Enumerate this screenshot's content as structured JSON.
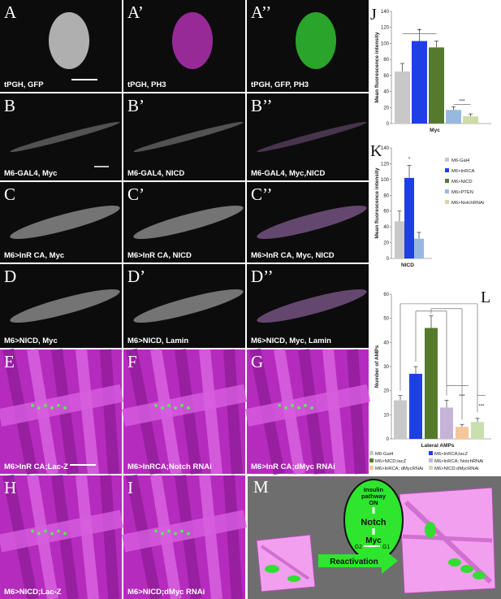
{
  "panels": [
    {
      "letter": "A",
      "caption": "tPGH, GFP"
    },
    {
      "letter": "A’",
      "caption": "tPGH, PH3"
    },
    {
      "letter": "A’’",
      "caption": "tPGH, GFP, PH3"
    },
    {
      "letter": "B",
      "caption": "M6-GAL4, Myc"
    },
    {
      "letter": "B’",
      "caption": "M6-GAL4, NICD"
    },
    {
      "letter": "B’’",
      "caption": "M6-GAL4, Myc,NICD"
    },
    {
      "letter": "C",
      "caption": "M6>InR CA, Myc"
    },
    {
      "letter": "C’",
      "caption": "M6>InR CA, NICD"
    },
    {
      "letter": "C’’",
      "caption": "M6>InR CA, Myc, NICD"
    },
    {
      "letter": "D",
      "caption": "M6>NICD, Myc"
    },
    {
      "letter": "D’",
      "caption": "M6>NICD, Lamin"
    },
    {
      "letter": "D’’",
      "caption": "M6>NICD, Myc, Lamin"
    },
    {
      "letter": "E",
      "caption": "M6>InR CA;Lac-Z"
    },
    {
      "letter": "F",
      "caption": "M6>InRCA;Notch RNAi"
    },
    {
      "letter": "G",
      "caption": "M6>InR CA;dMyc RNAi"
    },
    {
      "letter": "H",
      "caption": "M6>NICD;Lac-Z"
    },
    {
      "letter": "I",
      "caption": "M6>NICD;dMyc RNAi"
    }
  ],
  "chart_data": [
    {
      "type": "bar",
      "label": "J",
      "y_label": "Mean fluorescence intensity",
      "x_label": "Myc",
      "ylim": [
        0,
        140
      ],
      "yticks": [
        0,
        20,
        40,
        60,
        80,
        100,
        120,
        140
      ],
      "annotations": [
        "*",
        "***"
      ],
      "series": [
        {
          "name": "M6-Gal4",
          "color": "#c8c8c8",
          "values": [
            65
          ],
          "errors": [
            10
          ]
        },
        {
          "name": "M6>InRCA",
          "color": "#1f3fe6",
          "values": [
            103
          ],
          "errors": [
            14
          ]
        },
        {
          "name": "M6>NICD",
          "color": "#567a2c",
          "values": [
            95
          ],
          "errors": [
            8
          ]
        },
        {
          "name": "M6>PTEN",
          "color": "#96b9e2",
          "values": [
            17
          ],
          "errors": [
            4
          ]
        },
        {
          "name": "M6>NotchRNAi",
          "color": "#cfdca6",
          "values": [
            9
          ],
          "errors": [
            3
          ]
        }
      ]
    },
    {
      "type": "bar",
      "label": "K",
      "y_label": "Mean fluorescence intensity",
      "x_label": "NICD",
      "ylim": [
        0,
        140
      ],
      "yticks": [
        0,
        20,
        40,
        60,
        80,
        100,
        120,
        140
      ],
      "annotations": [
        "*"
      ],
      "series": [
        {
          "color": "#c8c8c8",
          "values": [
            47
          ],
          "errors": [
            13
          ]
        },
        {
          "color": "#1f3fe6",
          "values": [
            102
          ],
          "errors": [
            16
          ]
        },
        {
          "color": "#96b9e2",
          "values": [
            25
          ],
          "errors": [
            8
          ]
        }
      ]
    },
    {
      "type": "bar",
      "label": "L",
      "y_label": "Number of AMPs",
      "x_label": "Lateral AMPs",
      "ylim": [
        0,
        60
      ],
      "yticks": [
        0,
        10,
        20,
        30,
        40,
        50,
        60
      ],
      "annotations": [
        "***",
        "***"
      ],
      "series": [
        {
          "name": "M6-Gal4",
          "color": "#c8c8c8",
          "values": [
            16
          ],
          "errors": [
            2
          ]
        },
        {
          "name": "M6>InRCA;lacZ",
          "color": "#1f3fe6",
          "values": [
            27
          ],
          "errors": [
            3
          ]
        },
        {
          "name": "M6>NICD;lacZ",
          "color": "#567a2c",
          "values": [
            46
          ],
          "errors": [
            5
          ]
        },
        {
          "name": "M6>InRCA; NotchRNAi",
          "color": "#c6b3d8",
          "values": [
            13
          ],
          "errors": [
            3
          ]
        },
        {
          "name": "M6>InRCA; dMycRNAi",
          "color": "#f5c79a",
          "values": [
            5
          ],
          "errors": [
            1
          ]
        },
        {
          "name": "M6>NICD;dMycRNAi",
          "color": "#c9dfae",
          "values": [
            7
          ],
          "errors": [
            1.5
          ]
        }
      ]
    }
  ],
  "diagram": {
    "letter": "M",
    "insulin": [
      "Insulin",
      "pathway",
      "ON"
    ],
    "notch": "Notch",
    "myc": "Myc",
    "g_left": "G2",
    "g_right": "G1",
    "arrow": "Reactivation"
  }
}
